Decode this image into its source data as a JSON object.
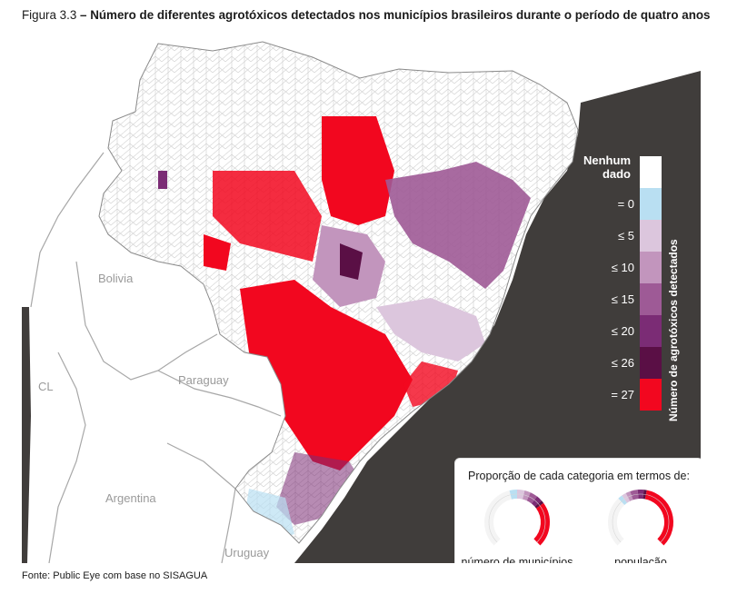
{
  "figure": {
    "label": "Figura 3.3",
    "title": "– Número de diferentes agrotóxicos detectados nos municípios brasileiros durante o período de quatro anos"
  },
  "countries": {
    "bolivia": "Bolivia",
    "paraguay": "Paraguay",
    "chile": "CL",
    "argentina": "Argentina",
    "uruguay": "Uruguay"
  },
  "legend": {
    "no_data": "Nenhum dado",
    "axis_title": "Número de agrotóxicos detectados",
    "items": [
      {
        "label": "",
        "color": "#ffffff"
      },
      {
        "label": "= 0",
        "color": "#b9dff2"
      },
      {
        "label": "≤ 5",
        "color": "#dcc6dd"
      },
      {
        "label": "≤ 10",
        "color": "#c295bd"
      },
      {
        "label": "≤ 15",
        "color": "#9e5a96"
      },
      {
        "label": "≤ 20",
        "color": "#7b2c75"
      },
      {
        "label": "≤ 26",
        "color": "#5a0f45"
      },
      {
        "label": "= 27",
        "color": "#f2071f"
      }
    ]
  },
  "inset": {
    "title": "Proporção de cada categoria em termos de:",
    "gauges": [
      {
        "label": "número de municípios",
        "shares": [
          {
            "color": "#ffffff",
            "value": 0.45
          },
          {
            "color": "#b9dff2",
            "value": 0.05
          },
          {
            "color": "#dcc6dd",
            "value": 0.05
          },
          {
            "color": "#c295bd",
            "value": 0.04
          },
          {
            "color": "#9e5a96",
            "value": 0.05
          },
          {
            "color": "#7b2c75",
            "value": 0.04
          },
          {
            "color": "#5a0f45",
            "value": 0.02
          },
          {
            "color": "#f2071f",
            "value": 0.3
          }
        ]
      },
      {
        "label": "população",
        "shares": [
          {
            "color": "#ffffff",
            "value": 0.34
          },
          {
            "color": "#b9dff2",
            "value": 0.03
          },
          {
            "color": "#dcc6dd",
            "value": 0.03
          },
          {
            "color": "#c295bd",
            "value": 0.03
          },
          {
            "color": "#9e5a96",
            "value": 0.05
          },
          {
            "color": "#7b2c75",
            "value": 0.04
          },
          {
            "color": "#5a0f45",
            "value": 0.02
          },
          {
            "color": "#f2071f",
            "value": 0.46
          }
        ]
      }
    ]
  },
  "source": "Fonte: Public Eye com base no SISAGUA"
}
